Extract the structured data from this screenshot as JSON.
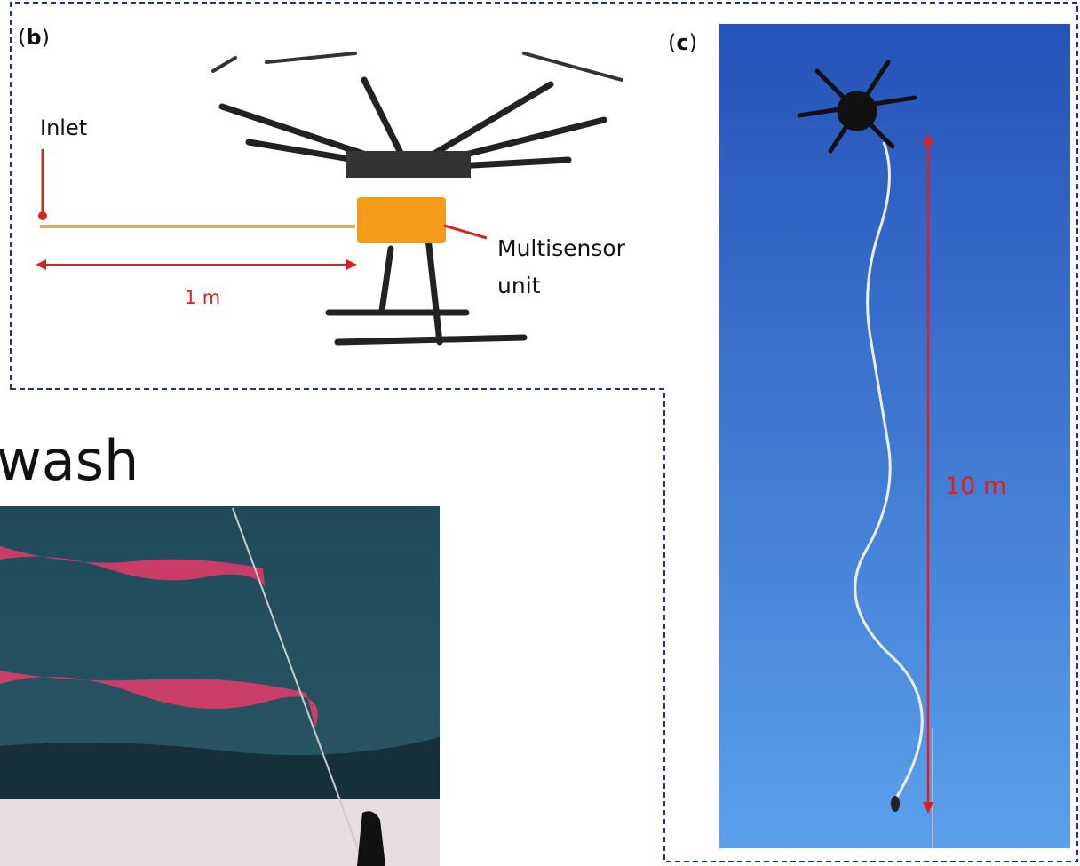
{
  "panel_a": {
    "heading_fragment": "wash"
  },
  "panel_b": {
    "label": [
      "(",
      "b",
      ")"
    ],
    "inlet": "Inlet",
    "length": "1 m",
    "sensor": [
      "Multisensor",
      "unit"
    ]
  },
  "panel_c": {
    "label": [
      "(",
      "c",
      ")"
    ],
    "length": "10 m"
  }
}
